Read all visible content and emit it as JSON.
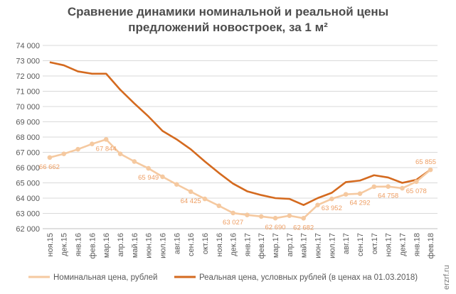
{
  "chart_data": {
    "type": "line",
    "title_line1": "Сравнение динамики номинальной и реальной цены",
    "title_line2": "предложений новостроек, за 1 м²",
    "categories": [
      "ноя.15",
      "дек.15",
      "янв.16",
      "фев.16",
      "мар.16",
      "апр.16",
      "май.16",
      "июн.16",
      "июл.16",
      "авг.16",
      "сен.16",
      "окт.16",
      "ноя.16",
      "дек.16",
      "янв.17",
      "фев.17",
      "мар.17",
      "апр.17",
      "май.17",
      "июн.17",
      "июл.17",
      "авг.17",
      "сен.17",
      "окт.17",
      "ноя.17",
      "дек.17",
      "янв.18",
      "фев.18"
    ],
    "ylim": [
      62000,
      74000
    ],
    "yticks": [
      "62 000",
      "63 000",
      "64 000",
      "65 000",
      "66 000",
      "67 000",
      "68 000",
      "69 000",
      "70 000",
      "71 000",
      "72 000",
      "73 000",
      "74 000"
    ],
    "grid": true,
    "legend_position": "bottom",
    "series": [
      {
        "name": "Номинальная цена, рублей",
        "color": "#f5c9a0",
        "values": [
          66662,
          66900,
          67200,
          67550,
          67844,
          66900,
          66400,
          65949,
          65400,
          64900,
          64425,
          63950,
          63500,
          63027,
          62900,
          62800,
          62690,
          62850,
          62682,
          63550,
          63952,
          64250,
          64292,
          64750,
          64758,
          64650,
          65078,
          65855
        ],
        "labels": {
          "0": "66 662",
          "4": "67 844",
          "7": "65 949",
          "10": "64 425",
          "13": "63 027",
          "16": "62 690",
          "18": "62 682",
          "20": "63 952",
          "22": "64 292",
          "24": "64 758",
          "26": "65 078",
          "27": "65 855"
        }
      },
      {
        "name": "Реальная цена, условных рублей (в ценах на 01.03.2018)",
        "color": "#d46a1f",
        "values": [
          72900,
          72700,
          72300,
          72150,
          72150,
          71100,
          70200,
          69350,
          68400,
          67850,
          67200,
          66400,
          65650,
          64950,
          64450,
          64200,
          64000,
          63950,
          63550,
          64000,
          64350,
          65050,
          65150,
          65500,
          65350,
          65000,
          65200,
          65855
        ],
        "labels": {}
      }
    ]
  },
  "watermark": "erzrf.ru"
}
